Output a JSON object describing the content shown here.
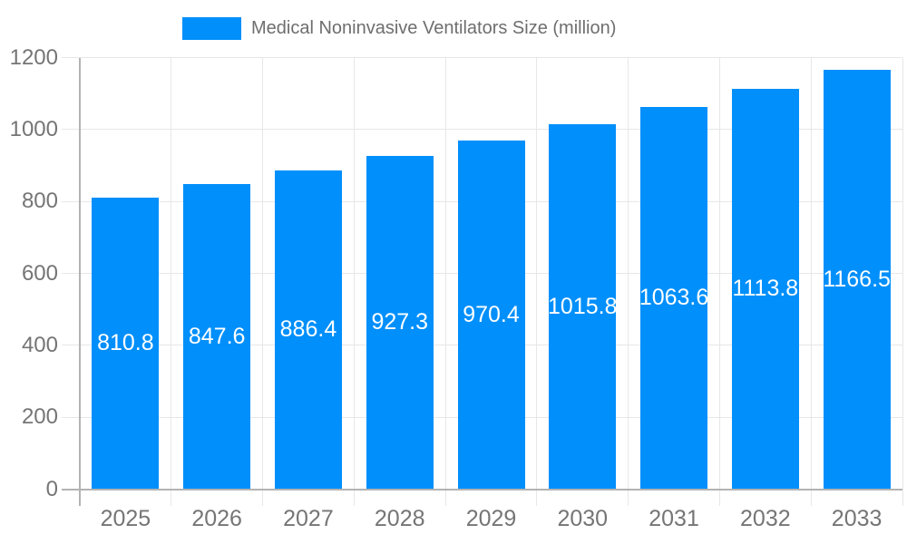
{
  "legend": {
    "label": "Medical Noninvasive Ventilators Size (million)"
  },
  "colors": {
    "bar": "#008FFB",
    "grid": "#e7e7e7",
    "axis": "#b3b3b3",
    "axis_label": "#757575",
    "legend_text": "#6e6e6e",
    "value_label": "#ffffff",
    "background": "#ffffff"
  },
  "chart_data": {
    "type": "bar",
    "title": "Medical Noninvasive Ventilators Size (million)",
    "categories": [
      "2025",
      "2026",
      "2027",
      "2028",
      "2029",
      "2030",
      "2031",
      "2032",
      "2033"
    ],
    "values": [
      810.8,
      847.6,
      886.4,
      927.3,
      970.4,
      1015.8,
      1063.6,
      1113.8,
      1166.5
    ],
    "value_labels": [
      "810.8",
      "847.6",
      "886.4",
      "927.3",
      "970.4",
      "1015.8",
      "1063.6",
      "1113.8",
      "1166.5"
    ],
    "xlabel": "",
    "ylabel": "",
    "ylim": [
      0,
      1200
    ],
    "yticks": [
      0,
      200,
      400,
      600,
      800,
      1000,
      1200
    ],
    "grid": true,
    "legend_position": "top",
    "legend_entries": [
      "Medical Noninvasive Ventilators Size (million)"
    ],
    "bar_label_position": "center"
  }
}
